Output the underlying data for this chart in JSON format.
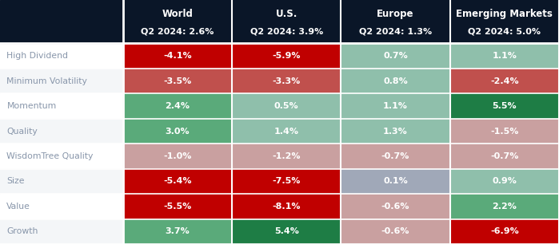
{
  "header_bg": "#0a1628",
  "header_text_color": "#ffffff",
  "columns": [
    "World\nQ2 2024: 2.6%",
    "U.S.\nQ2 2024: 3.9%",
    "Europe\nQ2 2024: 1.3%",
    "Emerging Markets\nQ2 2024: 5.0%"
  ],
  "rows": [
    "High Dividend",
    "Minimum Volatility",
    "Momentum",
    "Quality",
    "WisdomTree Quality",
    "Size",
    "Value",
    "Growth"
  ],
  "values": [
    [
      -4.1,
      -5.9,
      0.7,
      1.1
    ],
    [
      -3.5,
      -3.3,
      0.8,
      -2.4
    ],
    [
      2.4,
      0.5,
      1.1,
      5.5
    ],
    [
      3.0,
      1.4,
      1.3,
      -1.5
    ],
    [
      -1.0,
      -1.2,
      -0.7,
      -0.7
    ],
    [
      -5.4,
      -7.5,
      0.1,
      0.9
    ],
    [
      -5.5,
      -8.1,
      -0.6,
      2.2
    ],
    [
      3.7,
      5.4,
      -0.6,
      -6.9
    ]
  ],
  "label_texts": [
    [
      "-4.1%",
      "-5.9%",
      "0.7%",
      "1.1%"
    ],
    [
      "-3.5%",
      "-3.3%",
      "0.8%",
      "-2.4%"
    ],
    [
      "2.4%",
      "0.5%",
      "1.1%",
      "5.5%"
    ],
    [
      "3.0%",
      "1.4%",
      "1.3%",
      "-1.5%"
    ],
    [
      "-1.0%",
      "-1.2%",
      "-0.7%",
      "-0.7%"
    ],
    [
      "-5.4%",
      "-7.5%",
      "0.1%",
      "0.9%"
    ],
    [
      "-5.5%",
      "-8.1%",
      "-0.6%",
      "2.2%"
    ],
    [
      "3.7%",
      "5.4%",
      "-0.6%",
      "-6.9%"
    ]
  ],
  "row_label_color": "#8896aa",
  "row_bg_light": "#f4f6f8",
  "row_bg_white": "#ffffff",
  "strong_red": "#c00000",
  "medium_red": "#c0504d",
  "light_red": "#c9a0a0",
  "strong_green": "#1e7d45",
  "medium_green": "#5aaa7a",
  "light_green": "#8fbfab",
  "neutral_gray": "#a0a8b8",
  "figsize": [
    6.99,
    3.06
  ],
  "dpi": 100
}
